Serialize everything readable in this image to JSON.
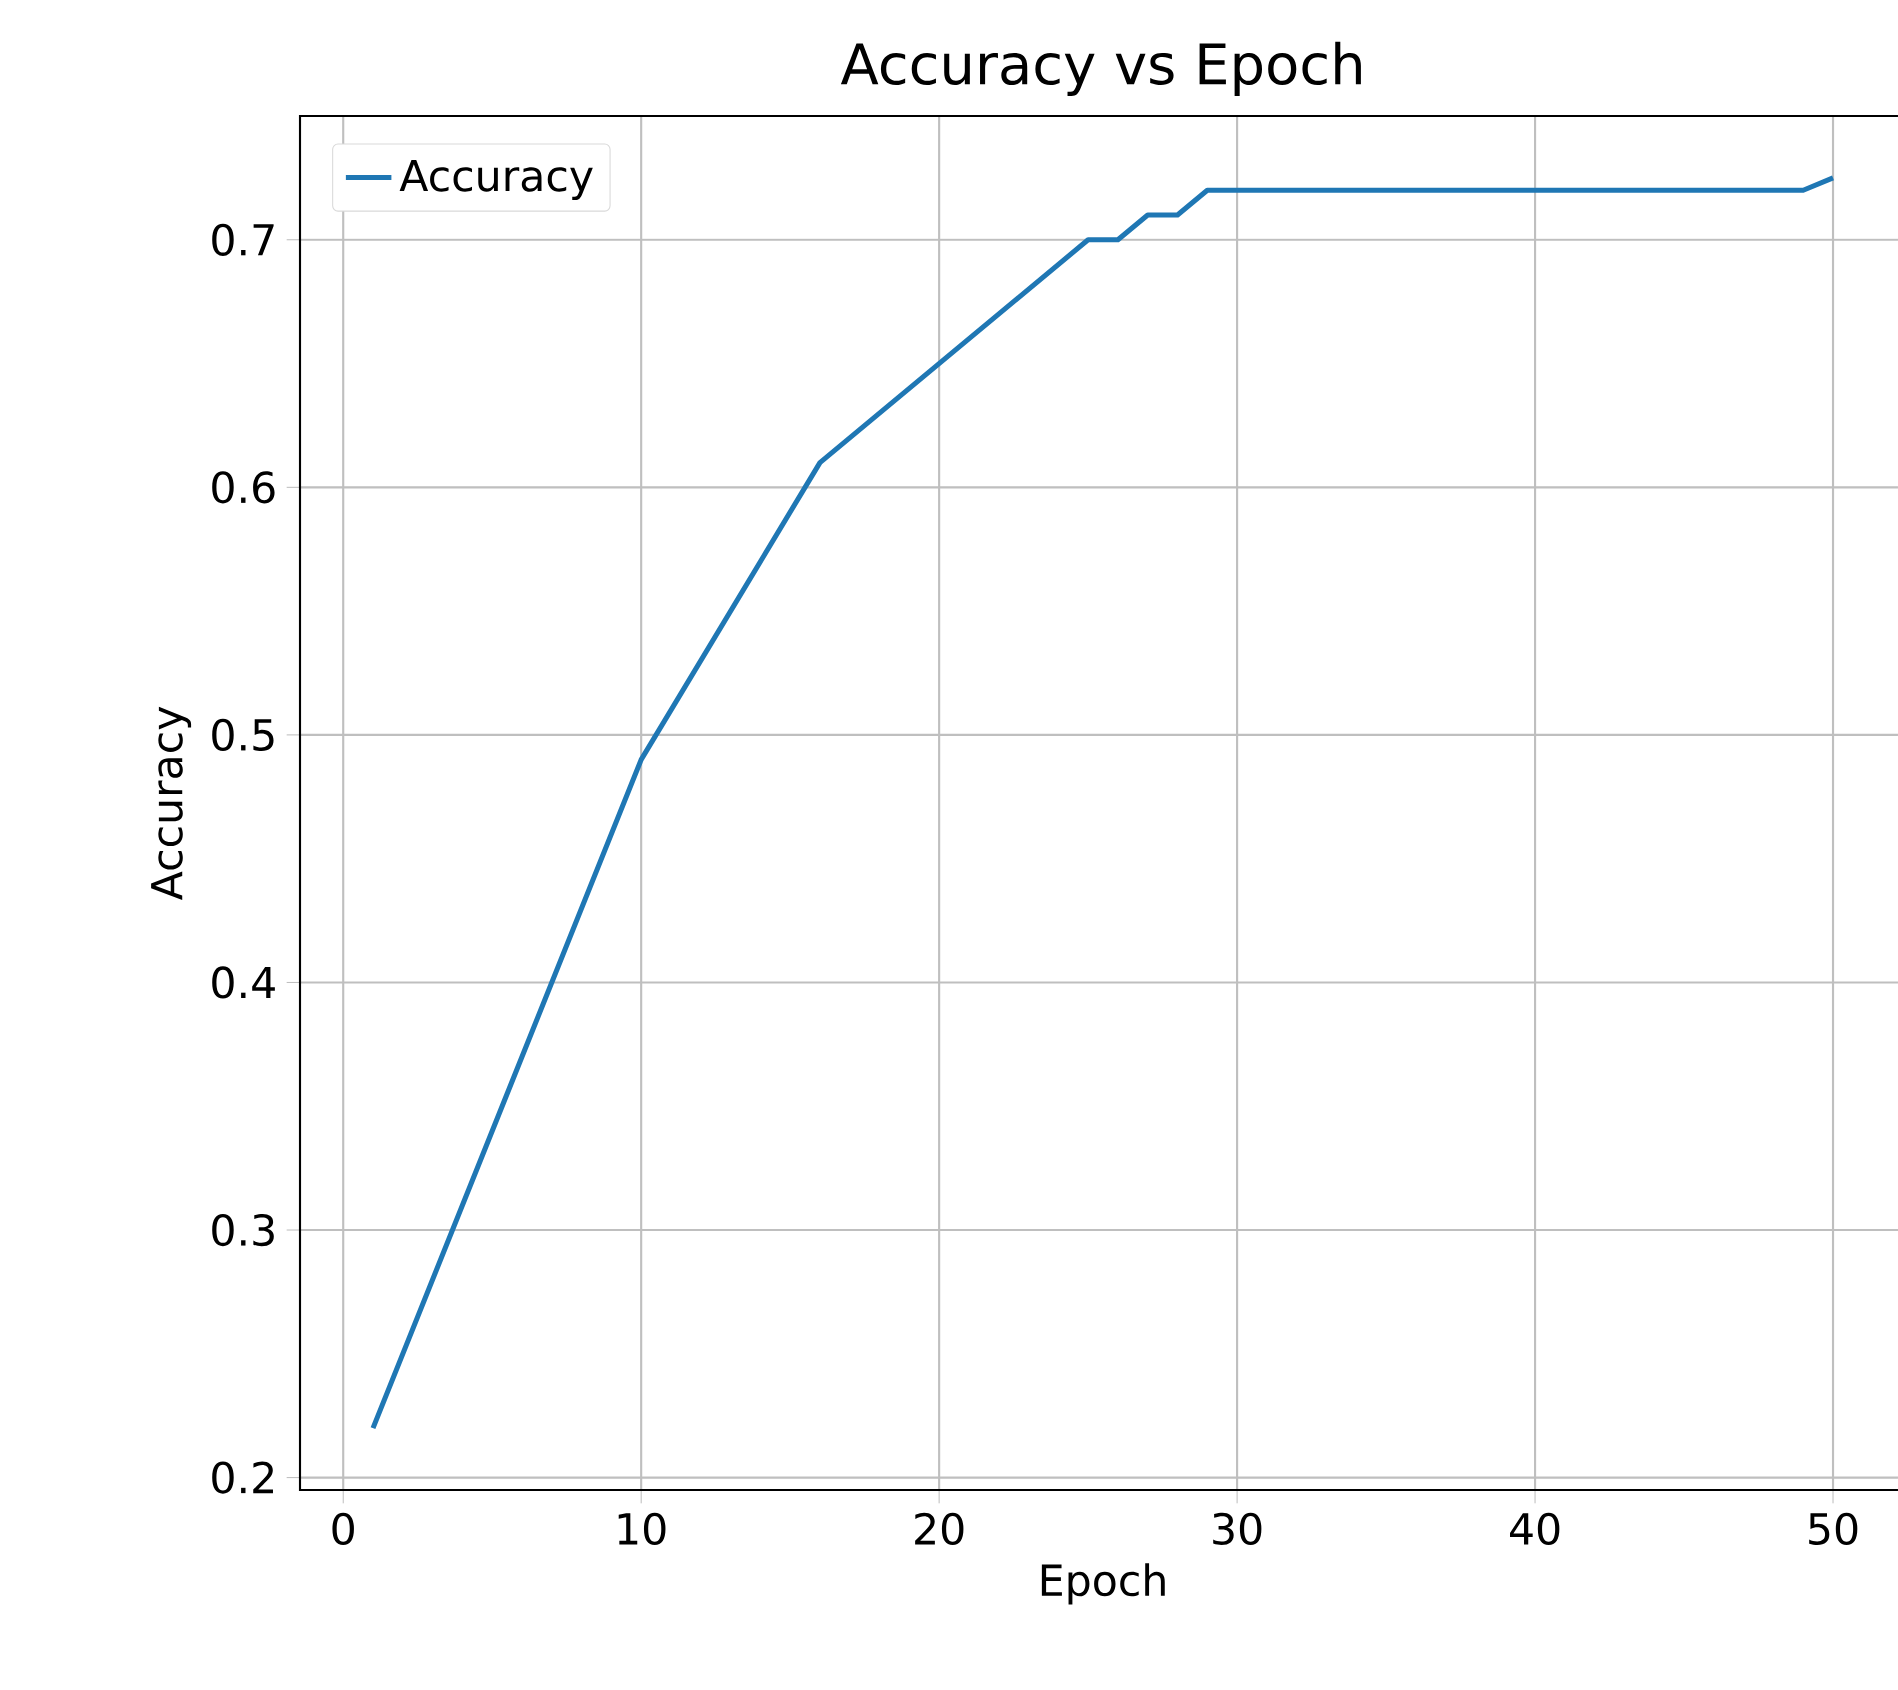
{
  "chart_data": {
    "type": "line",
    "title": "Accuracy vs Epoch",
    "xlabel": "Epoch",
    "ylabel": "Accuracy",
    "series": [
      {
        "name": "Accuracy",
        "color": "#1f77b4",
        "x": [
          1,
          10,
          16,
          25,
          26,
          27,
          28,
          29,
          49,
          50
        ],
        "values": [
          0.22,
          0.49,
          0.61,
          0.7,
          0.7,
          0.71,
          0.71,
          0.72,
          0.72,
          0.725
        ]
      }
    ],
    "xlim": [
      -1.45,
      52.45
    ],
    "ylim": [
      0.195,
      0.75
    ],
    "xticks": [
      0,
      10,
      20,
      30,
      40,
      50
    ],
    "yticks": [
      0.2,
      0.3,
      0.4,
      0.5,
      0.6,
      0.7
    ],
    "grid": true,
    "legend": "top left",
    "marker": "none",
    "line_style": "solid"
  }
}
